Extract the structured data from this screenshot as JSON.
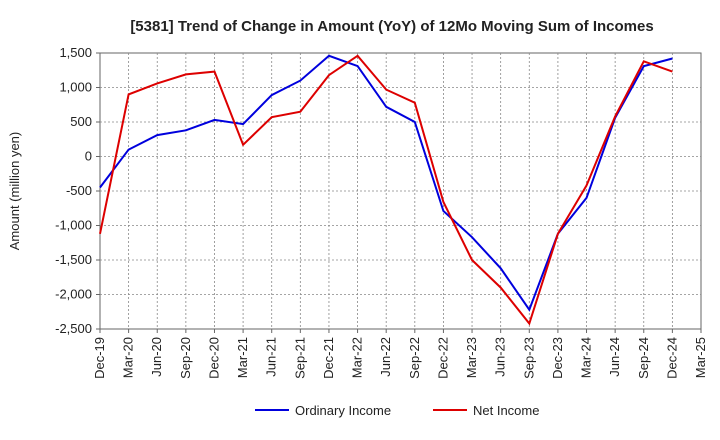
{
  "chart_data": {
    "type": "line",
    "title": "[5381]  Trend of Change in Amount (YoY) of 12Mo Moving Sum of Incomes",
    "xlabel": "",
    "ylabel": "Amount (million yen)",
    "ylim": [
      -2500,
      1500
    ],
    "yticks": [
      1500,
      1000,
      500,
      0,
      -500,
      -1000,
      -1500,
      -2000,
      -2500
    ],
    "ytick_labels": [
      "1,500",
      "1,000",
      "500",
      "0",
      "-500",
      "-1,000",
      "-1,500",
      "-2,000",
      "-2,500"
    ],
    "x": [
      "Dec-19",
      "Mar-20",
      "Jun-20",
      "Sep-20",
      "Dec-20",
      "Mar-21",
      "Jun-21",
      "Sep-21",
      "Dec-21",
      "Mar-22",
      "Jun-22",
      "Sep-22",
      "Dec-22",
      "Mar-23",
      "Jun-23",
      "Sep-23",
      "Dec-23",
      "Mar-24",
      "Jun-24",
      "Sep-24",
      "Dec-24",
      "Mar-25"
    ],
    "grid": true,
    "legend_position": "bottom",
    "series": [
      {
        "name": "Ordinary Income",
        "color": "#0000dd",
        "values": [
          -450,
          100,
          310,
          380,
          530,
          470,
          890,
          1100,
          1460,
          1310,
          720,
          500,
          -790,
          -1170,
          -1620,
          -2220,
          -1120,
          -600,
          560,
          1310,
          1420,
          null
        ]
      },
      {
        "name": "Net Income",
        "color": "#dd0000",
        "values": [
          -1120,
          900,
          1060,
          1190,
          1230,
          170,
          570,
          650,
          1180,
          1460,
          970,
          780,
          -660,
          -1500,
          -1900,
          -2420,
          -1120,
          -420,
          580,
          1380,
          1230,
          null
        ]
      }
    ]
  }
}
